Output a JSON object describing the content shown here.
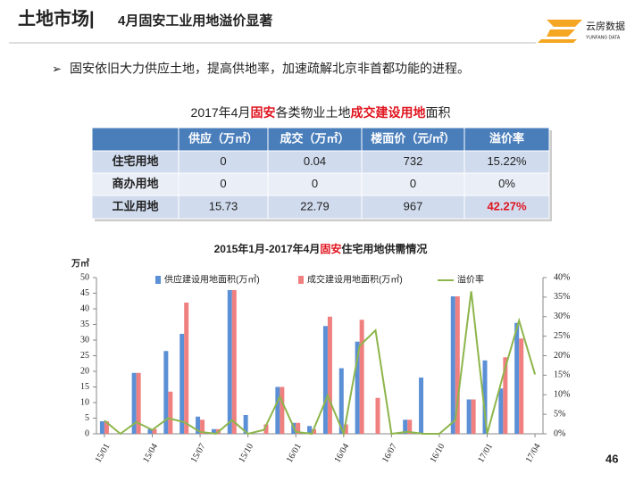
{
  "header": {
    "section": "土地市场|",
    "title": "4月固安工业用地溢价显著"
  },
  "logo": {
    "name": "云房数据",
    "subtitle": "YUNFANG DATA"
  },
  "bullet": "固安依旧大力供应土地，提高供地率，加速疏解北京非首都功能的进程。",
  "table": {
    "title": [
      "2017年4月",
      "固安",
      "各类物业土地",
      "成交建设用地",
      "面积"
    ],
    "header": [
      "",
      "供应（万㎡）",
      "成交（万㎡）",
      "楼面价（元/㎡）",
      "溢价率"
    ],
    "rows": [
      [
        "住宅用地",
        "0",
        "0.04",
        "732",
        "15.22%"
      ],
      [
        "商办用地",
        "0",
        "0",
        "0",
        "0%"
      ],
      [
        "工业用地",
        "15.73",
        "22.79",
        "967",
        "42.27%"
      ]
    ]
  },
  "chart_data": {
    "type": "bar",
    "title": [
      "2015年1月-2017年4月",
      "固安",
      "住宅用地供需情况"
    ],
    "ylabel": "万㎡",
    "categories": [
      "15/01",
      null,
      null,
      "15/04",
      null,
      null,
      "15/07",
      null,
      null,
      "15/10",
      null,
      null,
      "16/01",
      null,
      null,
      "16/04",
      null,
      null,
      "16/07",
      null,
      null,
      "16/10",
      null,
      null,
      "17/01",
      null,
      null,
      "17/04"
    ],
    "series": [
      {
        "name": "供应建设用地面积(万㎡)",
        "color": "#5b8fd6",
        "values": [
          4,
          0,
          19.5,
          1.5,
          26.5,
          32,
          5.5,
          1.5,
          46,
          6,
          0,
          15,
          3.5,
          2.5,
          34.5,
          21,
          29.5,
          0,
          0,
          4.5,
          18,
          0,
          44,
          11,
          23.5,
          14.5,
          35.5,
          0
        ]
      },
      {
        "name": "成交建设用地面积(万㎡)",
        "color": "#f08080",
        "values": [
          4,
          0,
          19.5,
          1.5,
          13.5,
          42,
          4.5,
          1.5,
          46,
          0,
          3,
          15,
          3.5,
          1.5,
          37.5,
          3,
          36.5,
          11.5,
          0,
          4.5,
          0,
          0,
          44,
          11,
          0,
          24.5,
          30.5,
          0
        ]
      },
      {
        "name": "溢价率",
        "color": "#8db54b",
        "type": "line",
        "axis": "y2",
        "values": [
          3.4,
          0,
          3,
          1,
          4,
          3,
          0.5,
          0,
          3.5,
          0,
          1,
          9.5,
          0.5,
          0,
          9.8,
          0,
          22.5,
          26.5,
          0,
          0.5,
          0,
          0,
          3.5,
          36.5,
          0,
          15,
          29,
          15.22
        ]
      }
    ],
    "ylim": [
      0,
      50
    ],
    "yticks": [
      0,
      5,
      10,
      15,
      20,
      25,
      30,
      35,
      40,
      45,
      50
    ],
    "y2lim": [
      0,
      40
    ],
    "y2ticks": [
      {
        "value": 0,
        "label": "0%"
      },
      {
        "value": 5,
        "label": "5%"
      },
      {
        "value": 10,
        "label": "10%"
      },
      {
        "value": 15,
        "label": "15%"
      },
      {
        "value": 20,
        "label": "20%"
      },
      {
        "value": 25,
        "label": "25%"
      },
      {
        "value": 30,
        "label": "30%"
      },
      {
        "value": 35,
        "label": "35%"
      },
      {
        "value": 40,
        "label": "40%"
      }
    ],
    "grid": false,
    "legend": "top"
  },
  "page_number": "46"
}
